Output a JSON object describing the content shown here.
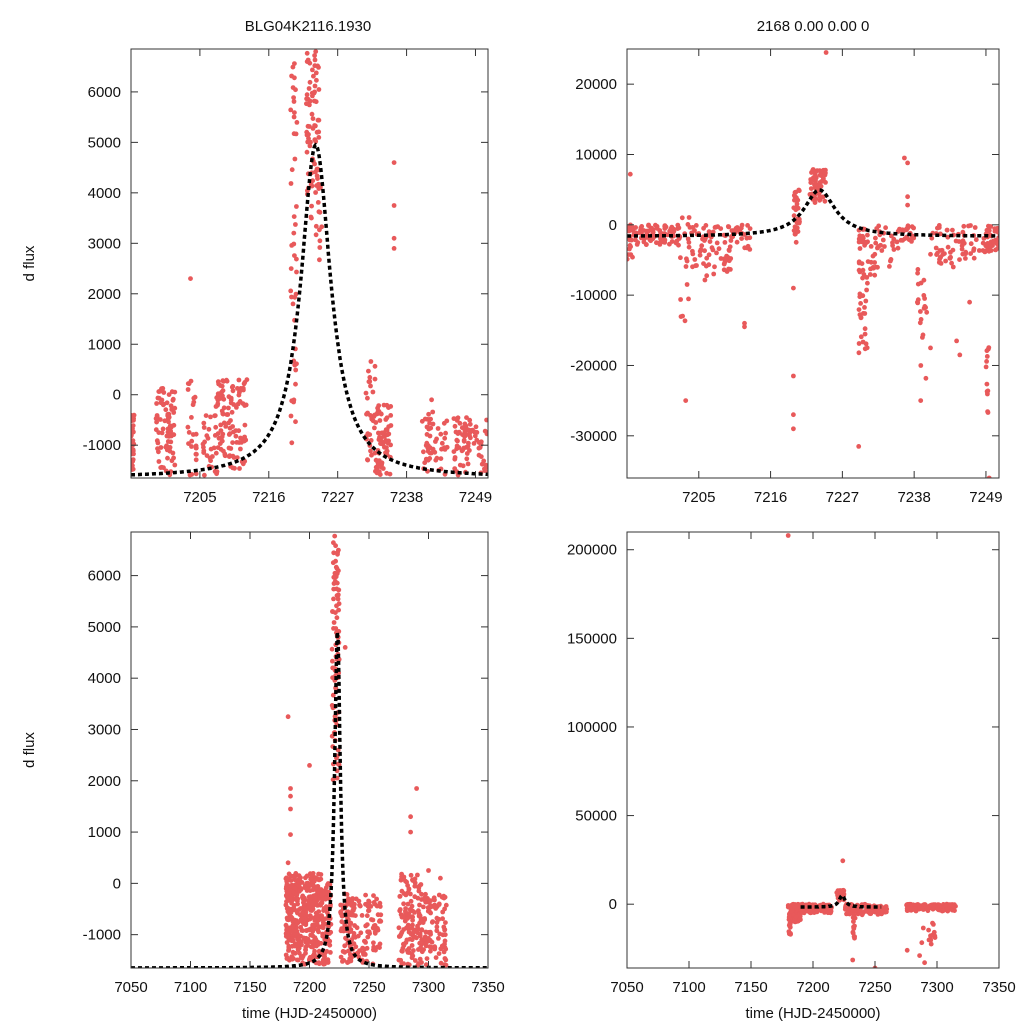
{
  "figure_titles": {
    "left": "BLG04K2116.1930",
    "right": "2168  0.00  0.00  0"
  },
  "chart_data": [
    {
      "id": "top-left",
      "type": "scatter",
      "title": "BLG04K2116.1930",
      "xlabel": "",
      "ylabel": "d flux",
      "xlim": [
        7194,
        7251
      ],
      "ylim": [
        -1650,
        6850
      ],
      "xticks": [
        7205,
        7216,
        7227,
        7238,
        7249
      ],
      "yticks": [
        -1000,
        0,
        1000,
        2000,
        3000,
        4000,
        5000,
        6000
      ],
      "model": {
        "t0": 7223.5,
        "peak": 4950,
        "base": -1650,
        "tE": 2.9
      },
      "clusters": [
        {
          "x": [
            7194,
            7194.5
          ],
          "y": [
            -1600,
            -400
          ],
          "n": 30
        },
        {
          "x": [
            7198,
            7201
          ],
          "y": [
            -1600,
            150
          ],
          "n": 80
        },
        {
          "x": [
            7203,
            7204.5
          ],
          "y": [
            -1600,
            400
          ],
          "n": 25
        },
        {
          "x": [
            7205.5,
            7207.5
          ],
          "y": [
            -1600,
            -400
          ],
          "n": 25
        },
        {
          "x": [
            7207.5,
            7212.5
          ],
          "y": [
            -1600,
            300
          ],
          "n": 110
        },
        {
          "x": [
            7219.5,
            7220.5
          ],
          "y": [
            -1300,
            6800
          ],
          "n": 45
        },
        {
          "x": [
            7222,
            7224
          ],
          "y": [
            3500,
            6800
          ],
          "n": 75
        },
        {
          "x": [
            7223.5,
            7224.5
          ],
          "y": [
            2500,
            4500
          ],
          "n": 15
        },
        {
          "x": [
            7231.5,
            7233
          ],
          "y": [
            -1600,
            700
          ],
          "n": 30
        },
        {
          "x": [
            7233,
            7235.5
          ],
          "y": [
            -1600,
            -200
          ],
          "n": 70
        },
        {
          "x": [
            7240.5,
            7244.5
          ],
          "y": [
            -1600,
            -300
          ],
          "n": 50
        },
        {
          "x": [
            7245.5,
            7251
          ],
          "y": [
            -1600,
            -400
          ],
          "n": 80
        }
      ],
      "extra_points": [
        [
          7203.5,
          2300
        ],
        [
          7236,
          4600
        ],
        [
          7236,
          3750
        ],
        [
          7236,
          3100
        ],
        [
          7236,
          2900
        ],
        [
          7242,
          -100
        ]
      ]
    },
    {
      "id": "top-right",
      "type": "scatter",
      "title": "2168  0.00  0.00  0",
      "xlabel": "",
      "ylabel": "",
      "xlim": [
        7194,
        7251
      ],
      "ylim": [
        -36000,
        25000
      ],
      "xticks": [
        7205,
        7216,
        7227,
        7238,
        7249
      ],
      "yticks": [
        -30000,
        -20000,
        -10000,
        0,
        10000,
        20000
      ],
      "model": {
        "t0": 7223.5,
        "peak": 4950,
        "base": -1650,
        "tE": 2.9
      },
      "clusters": [
        {
          "x": [
            7194,
            7195
          ],
          "y": [
            -5000,
            0
          ],
          "n": 20
        },
        {
          "x": [
            7195,
            7202
          ],
          "y": [
            -3000,
            0
          ],
          "n": 90
        },
        {
          "x": [
            7202,
            7204
          ],
          "y": [
            -14000,
            2000
          ],
          "n": 20
        },
        {
          "x": [
            7204,
            7210
          ],
          "y": [
            -8000,
            0
          ],
          "n": 70
        },
        {
          "x": [
            7210,
            7213
          ],
          "y": [
            -4000,
            0
          ],
          "n": 30
        },
        {
          "x": [
            7219.5,
            7220.5
          ],
          "y": [
            -3000,
            5000
          ],
          "n": 30
        },
        {
          "x": [
            7222,
            7224.5
          ],
          "y": [
            3000,
            8000
          ],
          "n": 60
        },
        {
          "x": [
            7229.5,
            7231
          ],
          "y": [
            -19000,
            0
          ],
          "n": 50
        },
        {
          "x": [
            7231,
            7236
          ],
          "y": [
            -8000,
            0
          ],
          "n": 40
        },
        {
          "x": [
            7236,
            7238
          ],
          "y": [
            -3000,
            0
          ],
          "n": 20
        },
        {
          "x": [
            7238.5,
            7240
          ],
          "y": [
            -22000,
            -5000
          ],
          "n": 20
        },
        {
          "x": [
            7240,
            7248
          ],
          "y": [
            -6000,
            0
          ],
          "n": 60
        },
        {
          "x": [
            7248.5,
            7251
          ],
          "y": [
            -4000,
            0
          ],
          "n": 40
        },
        {
          "x": [
            7249,
            7249.5
          ],
          "y": [
            -27000,
            -17000
          ],
          "n": 12
        }
      ],
      "extra_points": [
        [
          7194.5,
          7200
        ],
        [
          7203,
          -25000
        ],
        [
          7212,
          -14500
        ],
        [
          7212,
          -14000
        ],
        [
          7219.5,
          -21500
        ],
        [
          7219.5,
          -27000
        ],
        [
          7219.5,
          -29000
        ],
        [
          7219.5,
          -9000
        ],
        [
          7224.5,
          24500
        ],
        [
          7229.5,
          -31500
        ],
        [
          7236.5,
          9500
        ],
        [
          7237,
          8800
        ],
        [
          7237,
          4000
        ],
        [
          7237,
          2800
        ],
        [
          7238.5,
          -11000
        ],
        [
          7240.5,
          -17500
        ],
        [
          7239,
          -25000
        ],
        [
          7244.5,
          -16500
        ],
        [
          7245,
          -18500
        ],
        [
          7244,
          -6000
        ],
        [
          7246.5,
          -11000
        ],
        [
          7249.5,
          -36000
        ]
      ]
    },
    {
      "id": "bottom-left",
      "type": "scatter",
      "title": "",
      "xlabel": "time (HJD-2450000)",
      "ylabel": "d flux",
      "xlim": [
        7050,
        7350
      ],
      "ylim": [
        -1650,
        6850
      ],
      "xticks": [
        7050,
        7100,
        7150,
        7200,
        7250,
        7300,
        7350
      ],
      "yticks": [
        -1000,
        0,
        1000,
        2000,
        3000,
        4000,
        5000,
        6000
      ],
      "model": {
        "t0": 7223.5,
        "peak": 4950,
        "base": -1650,
        "tE": 2.9
      },
      "clusters": [
        {
          "x": [
            7180,
            7190
          ],
          "y": [
            -1600,
            200
          ],
          "n": 160
        },
        {
          "x": [
            7190,
            7210
          ],
          "y": [
            -1600,
            200
          ],
          "n": 240
        },
        {
          "x": [
            7210,
            7218
          ],
          "y": [
            -1600,
            0
          ],
          "n": 80
        },
        {
          "x": [
            7219,
            7225
          ],
          "y": [
            2000,
            6800
          ],
          "n": 90
        },
        {
          "x": [
            7226,
            7240
          ],
          "y": [
            -1600,
            -200
          ],
          "n": 90
        },
        {
          "x": [
            7240,
            7260
          ],
          "y": [
            -1600,
            -200
          ],
          "n": 70
        },
        {
          "x": [
            7275,
            7295
          ],
          "y": [
            -1600,
            200
          ],
          "n": 130
        },
        {
          "x": [
            7295,
            7315
          ],
          "y": [
            -1600,
            -200
          ],
          "n": 90
        }
      ],
      "extra_points": [
        [
          7182,
          3250
        ],
        [
          7184,
          1850
        ],
        [
          7184,
          1700
        ],
        [
          7184,
          1450
        ],
        [
          7184,
          950
        ],
        [
          7200,
          2300
        ],
        [
          7230,
          4600
        ],
        [
          7290,
          1850
        ],
        [
          7285,
          1300
        ],
        [
          7285,
          1000
        ],
        [
          7300,
          250
        ],
        [
          7310,
          100
        ],
        [
          7182,
          400
        ]
      ]
    },
    {
      "id": "bottom-right",
      "type": "scatter",
      "title": "",
      "xlabel": "time (HJD-2450000)",
      "ylabel": "",
      "xlim": [
        7050,
        7350
      ],
      "ylim": [
        -36000,
        210000
      ],
      "xticks": [
        7050,
        7100,
        7150,
        7200,
        7250,
        7300,
        7350
      ],
      "yticks": [
        0,
        50000,
        100000,
        150000,
        200000
      ],
      "model": {
        "t0": 7223.5,
        "peak": 4950,
        "base": -1650,
        "tE": 2.9,
        "xrange": [
          7190,
          7255
        ]
      },
      "clusters": [
        {
          "x": [
            7180,
            7190
          ],
          "y": [
            -10000,
            0
          ],
          "n": 80
        },
        {
          "x": [
            7190,
            7215
          ],
          "y": [
            -5000,
            0
          ],
          "n": 110
        },
        {
          "x": [
            7219,
            7225
          ],
          "y": [
            2000,
            8000
          ],
          "n": 40
        },
        {
          "x": [
            7226,
            7260
          ],
          "y": [
            -6000,
            0
          ],
          "n": 100
        },
        {
          "x": [
            7275,
            7315
          ],
          "y": [
            -4000,
            0
          ],
          "n": 140
        },
        {
          "x": [
            7180,
            7182
          ],
          "y": [
            -18000,
            -8000
          ],
          "n": 10
        },
        {
          "x": [
            7232,
            7234
          ],
          "y": [
            -20000,
            -5000
          ],
          "n": 12
        },
        {
          "x": [
            7285,
            7300
          ],
          "y": [
            -25000,
            -8000
          ],
          "n": 14
        }
      ],
      "extra_points": [
        [
          7180,
          208000
        ],
        [
          7224,
          24500
        ],
        [
          7232,
          -31500
        ],
        [
          7250,
          -36000
        ],
        [
          7290,
          -33000
        ],
        [
          7276,
          -26000
        ],
        [
          7286,
          -29000
        ]
      ]
    }
  ]
}
